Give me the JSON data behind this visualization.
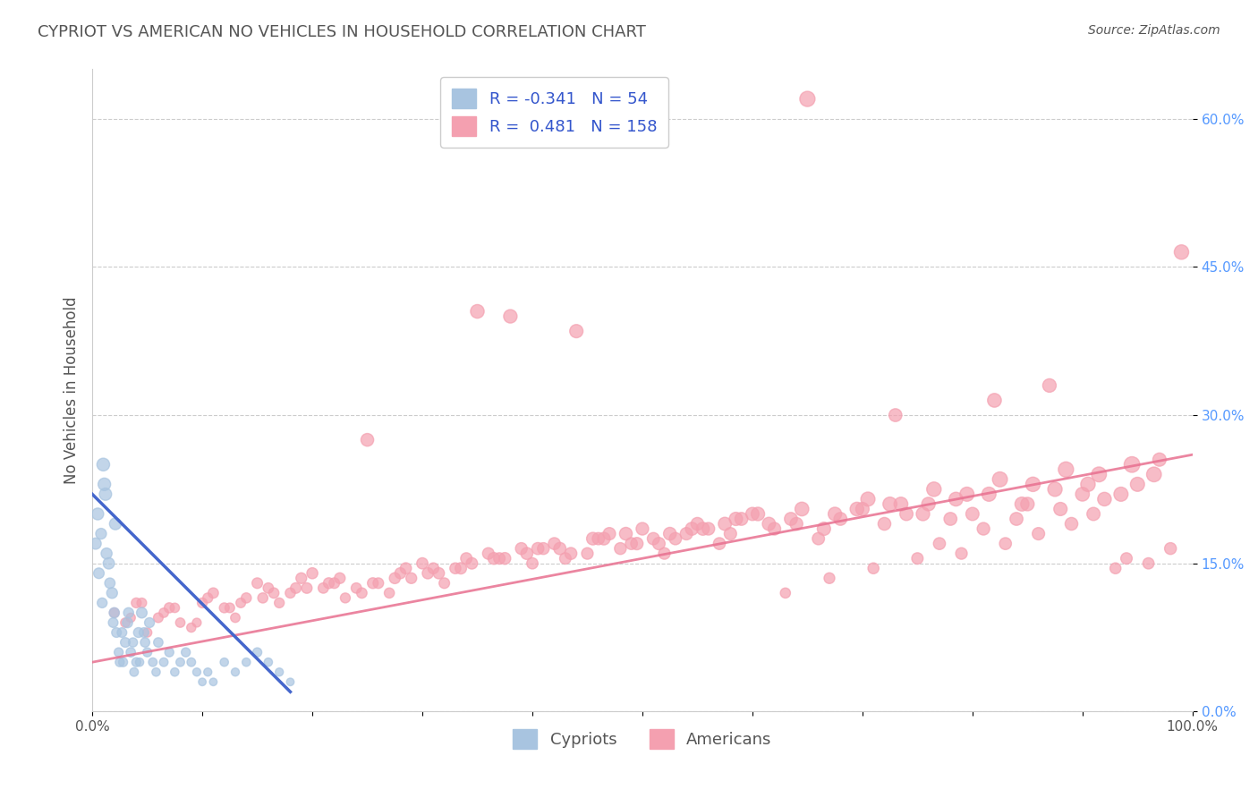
{
  "title": "CYPRIOT VS AMERICAN NO VEHICLES IN HOUSEHOLD CORRELATION CHART",
  "source": "Source: ZipAtlas.com",
  "xlabel": "",
  "ylabel": "No Vehicles in Household",
  "legend_cypriot": {
    "R": -0.341,
    "N": 54,
    "label": "Cypriots"
  },
  "legend_american": {
    "R": 0.481,
    "N": 158,
    "label": "Americans"
  },
  "cypriot_color": "#a8c4e0",
  "american_color": "#f4a0b0",
  "trend_color": "#e87090",
  "cypriot_line_color": "#4466cc",
  "xlim": [
    0,
    100
  ],
  "ylim": [
    0,
    65
  ],
  "x_ticks": [
    0,
    10,
    20,
    30,
    40,
    50,
    60,
    70,
    80,
    90,
    100
  ],
  "x_tick_labels": [
    "0.0%",
    "",
    "",
    "",
    "",
    "",
    "",
    "",
    "",
    "",
    "100.0%"
  ],
  "y_ticks": [
    0,
    15,
    30,
    45,
    60
  ],
  "y_tick_labels": [
    "0.0%",
    "15.0%",
    "30.0%",
    "45.0%",
    "60.0%"
  ],
  "background_color": "#ffffff",
  "grid_color": "#cccccc",
  "title_color": "#555555",
  "axis_label_color": "#555555",
  "cypriot_data": {
    "x": [
      0.5,
      0.8,
      1.0,
      1.2,
      1.5,
      1.8,
      2.0,
      2.2,
      2.5,
      2.8,
      3.0,
      3.2,
      3.5,
      3.8,
      4.0,
      4.2,
      4.5,
      4.8,
      5.0,
      5.2,
      5.5,
      5.8,
      6.0,
      6.5,
      7.0,
      7.5,
      8.0,
      8.5,
      9.0,
      9.5,
      10.0,
      10.5,
      11.0,
      12.0,
      13.0,
      14.0,
      15.0,
      16.0,
      17.0,
      18.0,
      0.3,
      0.6,
      0.9,
      1.1,
      1.3,
      1.6,
      1.9,
      2.1,
      2.4,
      2.7,
      3.3,
      3.7,
      4.3,
      4.7
    ],
    "y": [
      20.0,
      18.0,
      25.0,
      22.0,
      15.0,
      12.0,
      10.0,
      8.0,
      5.0,
      5.0,
      7.0,
      9.0,
      6.0,
      4.0,
      5.0,
      8.0,
      10.0,
      7.0,
      6.0,
      9.0,
      5.0,
      4.0,
      7.0,
      5.0,
      6.0,
      4.0,
      5.0,
      6.0,
      5.0,
      4.0,
      3.0,
      4.0,
      3.0,
      5.0,
      4.0,
      5.0,
      6.0,
      5.0,
      4.0,
      3.0,
      17.0,
      14.0,
      11.0,
      23.0,
      16.0,
      13.0,
      9.0,
      19.0,
      6.0,
      8.0,
      10.0,
      7.0,
      5.0,
      8.0
    ],
    "size": [
      60,
      50,
      70,
      65,
      55,
      50,
      45,
      40,
      35,
      35,
      40,
      45,
      38,
      32,
      35,
      42,
      48,
      38,
      35,
      42,
      32,
      30,
      38,
      32,
      35,
      30,
      32,
      35,
      32,
      28,
      25,
      28,
      25,
      30,
      28,
      30,
      35,
      30,
      28,
      25,
      55,
      48,
      42,
      68,
      52,
      46,
      40,
      60,
      35,
      40,
      44,
      36,
      30,
      40
    ]
  },
  "american_data": {
    "x": [
      2.0,
      3.0,
      4.0,
      5.0,
      6.0,
      7.0,
      8.0,
      9.0,
      10.0,
      11.0,
      12.0,
      13.0,
      14.0,
      15.0,
      16.0,
      17.0,
      18.0,
      19.0,
      20.0,
      21.0,
      22.0,
      23.0,
      24.0,
      25.0,
      26.0,
      27.0,
      28.0,
      29.0,
      30.0,
      31.0,
      32.0,
      33.0,
      34.0,
      35.0,
      36.0,
      37.0,
      38.0,
      39.0,
      40.0,
      41.0,
      42.0,
      43.0,
      44.0,
      45.0,
      46.0,
      47.0,
      48.0,
      49.0,
      50.0,
      51.0,
      52.0,
      53.0,
      54.0,
      55.0,
      56.0,
      57.0,
      58.0,
      59.0,
      60.0,
      62.0,
      64.0,
      66.0,
      68.0,
      70.0,
      72.0,
      74.0,
      76.0,
      78.0,
      80.0,
      82.0,
      85.0,
      88.0,
      90.0,
      92.0,
      95.0,
      63.0,
      67.0,
      71.0,
      75.0,
      79.0,
      83.0,
      86.0,
      89.0,
      91.0,
      93.0,
      96.0,
      98.0,
      65.0,
      73.0,
      77.0,
      81.0,
      84.0,
      87.0,
      94.0,
      97.0,
      99.0,
      3.5,
      6.5,
      9.5,
      12.5,
      15.5,
      18.5,
      21.5,
      24.5,
      27.5,
      30.5,
      33.5,
      36.5,
      39.5,
      42.5,
      45.5,
      48.5,
      51.5,
      54.5,
      57.5,
      60.5,
      63.5,
      66.5,
      69.5,
      72.5,
      75.5,
      78.5,
      81.5,
      84.5,
      87.5,
      90.5,
      93.5,
      96.5,
      4.5,
      10.5,
      16.5,
      22.5,
      28.5,
      34.5,
      40.5,
      46.5,
      52.5,
      58.5,
      64.5,
      70.5,
      76.5,
      82.5,
      88.5,
      94.5,
      7.5,
      13.5,
      19.5,
      25.5,
      31.5,
      37.5,
      43.5,
      49.5,
      55.5,
      61.5,
      67.5,
      73.5,
      79.5,
      85.5,
      91.5
    ],
    "y": [
      10.0,
      9.0,
      11.0,
      8.0,
      9.5,
      10.5,
      9.0,
      8.5,
      11.0,
      12.0,
      10.5,
      9.5,
      11.5,
      13.0,
      12.5,
      11.0,
      12.0,
      13.5,
      14.0,
      12.5,
      13.0,
      11.5,
      12.5,
      27.5,
      13.0,
      12.0,
      14.0,
      13.5,
      15.0,
      14.5,
      13.0,
      14.5,
      15.5,
      40.5,
      16.0,
      15.5,
      40.0,
      16.5,
      15.0,
      16.5,
      17.0,
      15.5,
      38.5,
      16.0,
      17.5,
      18.0,
      16.5,
      17.0,
      18.5,
      17.5,
      16.0,
      17.5,
      18.0,
      19.0,
      18.5,
      17.0,
      18.0,
      19.5,
      20.0,
      18.5,
      19.0,
      17.5,
      19.5,
      20.5,
      19.0,
      20.0,
      21.0,
      19.5,
      20.0,
      31.5,
      21.0,
      20.5,
      22.0,
      21.5,
      23.0,
      12.0,
      13.5,
      14.5,
      15.5,
      16.0,
      17.0,
      18.0,
      19.0,
      20.0,
      14.5,
      15.0,
      16.5,
      62.0,
      30.0,
      17.0,
      18.5,
      19.5,
      33.0,
      15.5,
      25.5,
      46.5,
      9.5,
      10.0,
      9.0,
      10.5,
      11.5,
      12.5,
      13.0,
      12.0,
      13.5,
      14.0,
      14.5,
      15.5,
      16.0,
      16.5,
      17.5,
      18.0,
      17.0,
      18.5,
      19.0,
      20.0,
      19.5,
      18.5,
      20.5,
      21.0,
      20.0,
      21.5,
      22.0,
      21.0,
      22.5,
      23.0,
      22.0,
      24.0,
      11.0,
      11.5,
      12.0,
      13.5,
      14.5,
      15.0,
      16.5,
      17.5,
      18.0,
      19.5,
      20.5,
      21.5,
      22.5,
      23.5,
      24.5,
      25.0,
      10.5,
      11.0,
      12.5,
      13.0,
      14.0,
      15.5,
      16.0,
      17.0,
      18.5,
      19.0,
      20.0,
      21.0,
      22.0,
      23.0,
      24.0
    ],
    "size": [
      40,
      38,
      42,
      36,
      40,
      44,
      38,
      36,
      42,
      46,
      42,
      38,
      44,
      48,
      46,
      42,
      44,
      50,
      52,
      46,
      48,
      42,
      46,
      70,
      48,
      44,
      52,
      50,
      54,
      52,
      48,
      52,
      56,
      80,
      58,
      56,
      78,
      60,
      54,
      60,
      62,
      56,
      76,
      58,
      64,
      66,
      60,
      62,
      68,
      64,
      58,
      64,
      66,
      70,
      68,
      62,
      66,
      72,
      74,
      68,
      70,
      64,
      72,
      76,
      70,
      74,
      78,
      72,
      74,
      82,
      78,
      76,
      82,
      80,
      86,
      44,
      50,
      52,
      56,
      58,
      62,
      66,
      70,
      74,
      52,
      54,
      60,
      100,
      72,
      62,
      68,
      72,
      78,
      56,
      76,
      90,
      36,
      38,
      34,
      40,
      44,
      48,
      50,
      46,
      52,
      54,
      56,
      60,
      62,
      64,
      68,
      70,
      66,
      72,
      74,
      78,
      72,
      76,
      80,
      84,
      78,
      82,
      86,
      84,
      88,
      90,
      86,
      94,
      40,
      42,
      46,
      50,
      54,
      56,
      62,
      68,
      70,
      76,
      82,
      86,
      90,
      96,
      100,
      106,
      38,
      40,
      48,
      50,
      54,
      60,
      62,
      66,
      72,
      74,
      78,
      82,
      86,
      90,
      96
    ]
  },
  "trend_line": {
    "x_start": 0,
    "x_end": 100,
    "y_start": 5.0,
    "y_end": 26.0
  },
  "cypriot_trend_line": {
    "x_start": 0,
    "x_end": 18,
    "y_start": 22.0,
    "y_end": 2.0
  }
}
